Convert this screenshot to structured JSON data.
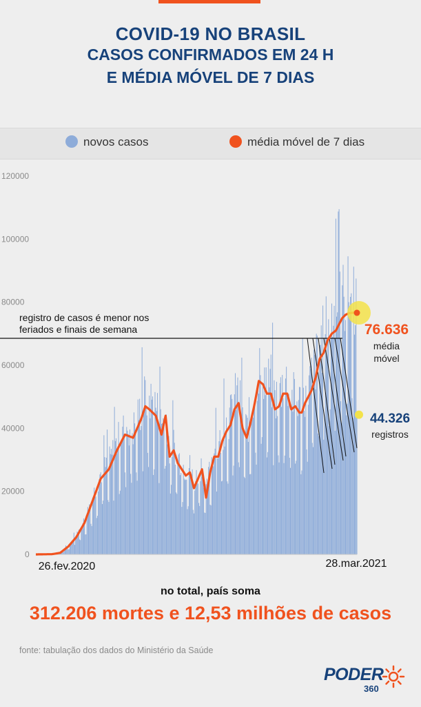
{
  "header": {
    "line1": "COVID-19 NO BRASIL",
    "line2": "CASOS CONFIRMADOS EM 24 H",
    "line3": "E MÉDIA MÓVEL DE 7 DIAS"
  },
  "legend": {
    "bars_label": "novos casos",
    "line_label": "média móvel de 7 dias"
  },
  "colors": {
    "bars": "#8eacd9",
    "line": "#f0521e",
    "title": "#17427a",
    "highlight": "#f3e24a"
  },
  "chart_data": {
    "type": "bar",
    "y_ticks": [
      "0",
      "20000",
      "40000",
      "60000",
      "80000",
      "100000",
      "120000"
    ],
    "ylim": [
      0,
      120000
    ],
    "x_start_label": "26.fev.2020",
    "x_end_label": "28.mar.2021",
    "series": [
      {
        "name": "novos casos",
        "kind": "bar",
        "note": "approximate daily values read from chart, one per day 26 Feb 2020 - 28 Mar 2021"
      },
      {
        "name": "média móvel de 7 dias",
        "kind": "line",
        "x": [
          0,
          20,
          30,
          40,
          50,
          60,
          70,
          80,
          90,
          100,
          110,
          120,
          130,
          135,
          140,
          148,
          155,
          160,
          165,
          170,
          175,
          180,
          185,
          190,
          195,
          200,
          205,
          210,
          215,
          220,
          225,
          230,
          235,
          240,
          245,
          250,
          255,
          260,
          265,
          270,
          275,
          280,
          285,
          290,
          295,
          300,
          305,
          310,
          315,
          320,
          325,
          328,
          332,
          336,
          340,
          345,
          350,
          355,
          360,
          365,
          370,
          374,
          378,
          382,
          386,
          390,
          394,
          396
        ],
        "values": [
          0,
          80,
          500,
          2500,
          5500,
          10000,
          17000,
          24000,
          27000,
          33000,
          38000,
          37000,
          43000,
          47000,
          46000,
          44000,
          38000,
          44000,
          31000,
          33000,
          29000,
          27000,
          25000,
          26000,
          21000,
          24000,
          27000,
          18000,
          26000,
          31000,
          31000,
          36000,
          39000,
          41000,
          46000,
          48000,
          40000,
          37000,
          42000,
          48000,
          55000,
          54000,
          51000,
          51000,
          46000,
          47000,
          51000,
          51000,
          46000,
          47000,
          45000,
          45000,
          48000,
          50000,
          52000,
          56000,
          62000,
          64000,
          68000,
          70000,
          71000,
          73000,
          75000,
          76000,
          76500,
          76636,
          76636,
          76636
        ]
      }
    ],
    "annotations": {
      "holiday_note": "registro de casos é menor nos feriados e finais de semana",
      "moving_avg_value": "76.636",
      "moving_avg_label_1": "média",
      "moving_avg_label_2": "móvel",
      "registros_value": "44.326",
      "registros_label": "registros"
    }
  },
  "summary": {
    "label": "no total, país soma",
    "value": "312.206 mortes e 12,53 milhões de casos"
  },
  "footer": {
    "source": "fonte: tabulação dos dados do Ministério da Saúde",
    "logo_word": "PODER",
    "logo_sub": "360"
  }
}
